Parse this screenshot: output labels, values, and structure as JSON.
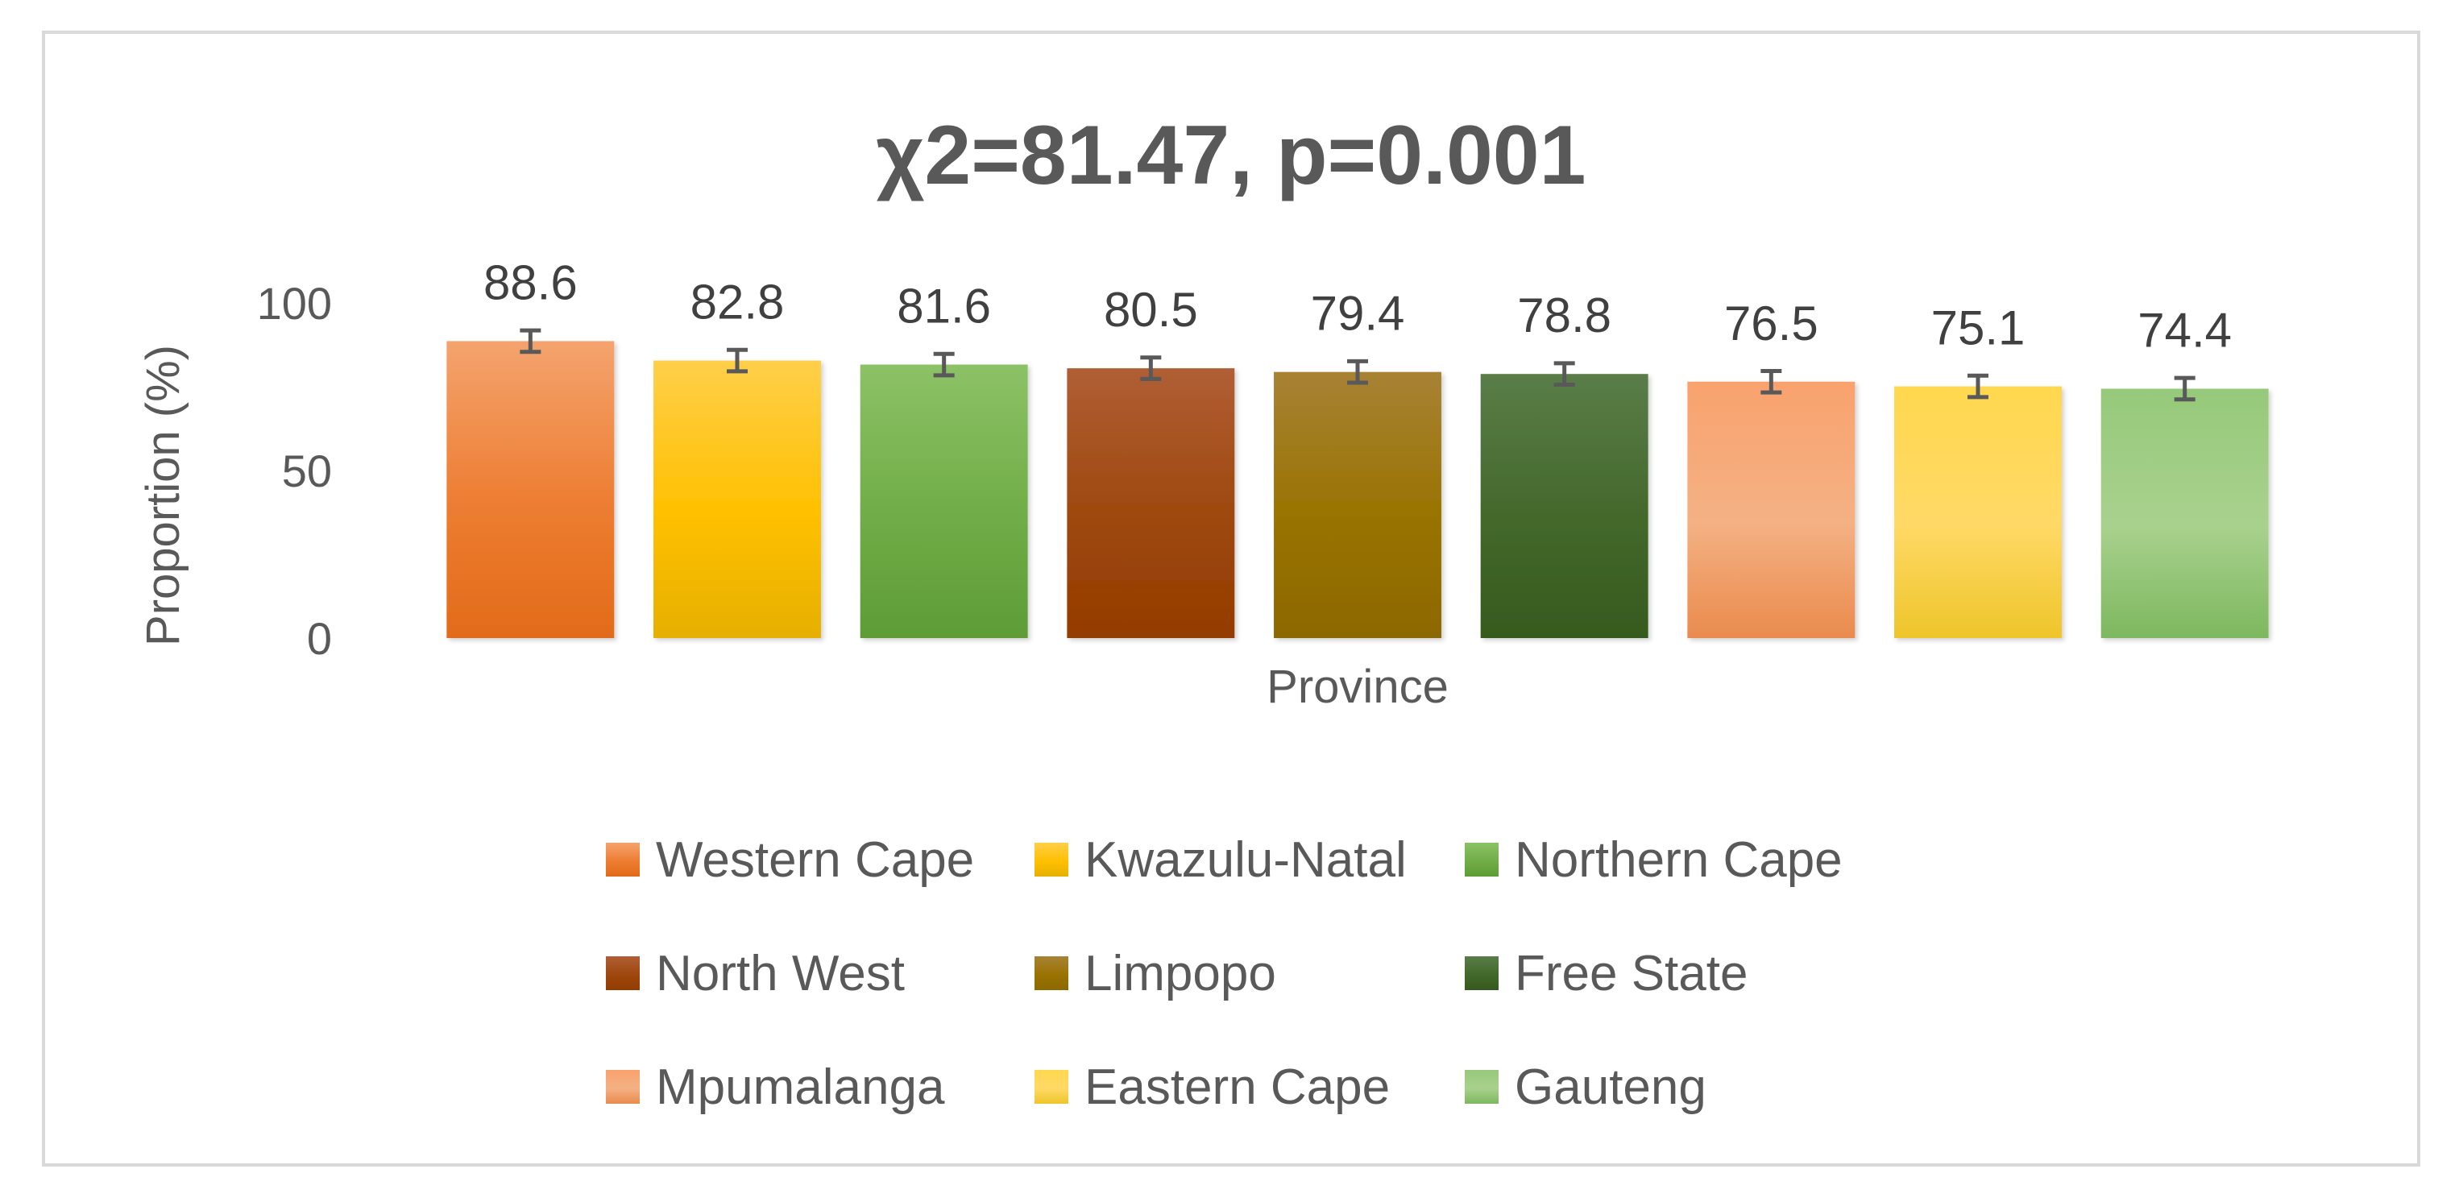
{
  "chart_data": {
    "type": "bar",
    "title": "χ2=81.47, p=0.001",
    "xlabel": "Province",
    "ylabel": "Proportion (%)",
    "ylim": [
      0,
      100
    ],
    "yticks": [
      "0",
      "50",
      "100"
    ],
    "grid": false,
    "legend_position": "bottom",
    "error_bars": true,
    "series": [
      {
        "name": "Western Cape",
        "value": 88.6,
        "label": "88.6",
        "color": "#ED7D31",
        "color_light": "#F4A36E",
        "color_dark": "#E26B1A"
      },
      {
        "name": "Kwazulu-Natal",
        "value": 82.8,
        "label": "82.8",
        "color": "#FFC000",
        "color_light": "#FFCF4A",
        "color_dark": "#E6B000"
      },
      {
        "name": "Northern Cape",
        "value": 81.6,
        "label": "81.6",
        "color": "#70AD47",
        "color_light": "#8CC266",
        "color_dark": "#5E9C36"
      },
      {
        "name": "North West",
        "value": 80.5,
        "label": "80.5",
        "color": "#9E480E",
        "color_light": "#B05E35",
        "color_dark": "#943C00"
      },
      {
        "name": "Limpopo",
        "value": 79.4,
        "label": "79.4",
        "color": "#997300",
        "color_light": "#A88235",
        "color_dark": "#8C6800"
      },
      {
        "name": "Free State",
        "value": 78.8,
        "label": "78.8",
        "color": "#43682B",
        "color_light": "#5A7D48",
        "color_dark": "#365A1E"
      },
      {
        "name": "Mpumalanga",
        "value": 76.5,
        "label": "76.5",
        "color": "#F4B183",
        "color_light": "#F9A26E",
        "color_dark": "#EA8B4E"
      },
      {
        "name": "Eastern Cape",
        "value": 75.1,
        "label": "75.1",
        "color": "#FFD966",
        "color_light": "#FFD84F",
        "color_dark": "#EEC52A"
      },
      {
        "name": "Gauteng",
        "value": 74.4,
        "label": "74.4",
        "color": "#A9D18E",
        "color_light": "#96C97A",
        "color_dark": "#7DB85E"
      }
    ]
  }
}
